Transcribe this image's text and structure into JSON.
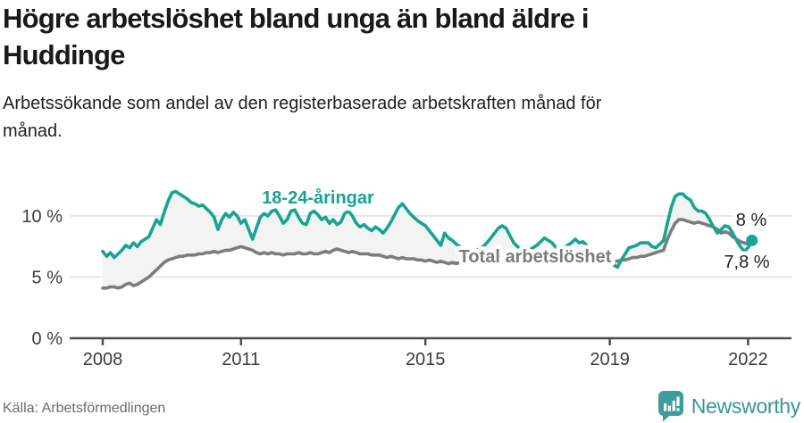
{
  "header": {
    "title_lines": [
      "Högre arbetslöshet bland unga än bland äldre i",
      "Huddinge"
    ],
    "subtitle_lines": [
      "Arbetssökande som andel av den registerbaserade arbetskraften månad för",
      "månad."
    ]
  },
  "chart_data": {
    "type": "line",
    "title": "Högre arbetslöshet bland unga än bland äldre i Huddinge",
    "subtitle": "Arbetssökande som andel av den registerbaserade arbetskraften månad för månad.",
    "x_unit": "month",
    "x_start_year": 2008,
    "x_ticks": [
      {
        "label": "2008",
        "year": 2008
      },
      {
        "label": "2011",
        "year": 2011
      },
      {
        "label": "2015",
        "year": 2015
      },
      {
        "label": "2019",
        "year": 2019
      },
      {
        "label": "2022",
        "year": 2022
      }
    ],
    "y_ticks": [
      {
        "label": "0 %",
        "value": 0
      },
      {
        "label": "5 %",
        "value": 5
      },
      {
        "label": "10 %",
        "value": 10
      }
    ],
    "ylim": [
      0,
      13.2
    ],
    "grid": "horizontal",
    "gridline_values": [
      5,
      10
    ],
    "fill_between_color": "#f3f3f3",
    "series": [
      {
        "name": "18-24-åringar",
        "color": "#18a392",
        "end_label": "8 %",
        "end_marker": true,
        "values": [
          7.1,
          6.7,
          7.0,
          6.6,
          6.9,
          7.2,
          7.6,
          7.4,
          7.8,
          7.5,
          7.9,
          8.1,
          8.3,
          9.0,
          9.7,
          9.3,
          10.3,
          11.2,
          11.9,
          12.0,
          11.8,
          11.6,
          11.4,
          11.1,
          11.0,
          10.8,
          10.9,
          10.6,
          10.3,
          9.9,
          8.9,
          9.7,
          10.2,
          9.9,
          10.3,
          10.0,
          9.4,
          9.7,
          8.9,
          8.1,
          9.0,
          9.9,
          10.2,
          10.0,
          10.4,
          10.5,
          10.0,
          9.4,
          9.7,
          10.4,
          10.5,
          9.9,
          9.4,
          9.3,
          10.2,
          10.4,
          10.1,
          9.7,
          9.9,
          9.4,
          9.7,
          9.3,
          9.5,
          10.2,
          10.4,
          10.0,
          9.4,
          9.1,
          9.3,
          9.0,
          8.8,
          9.1,
          8.9,
          8.6,
          9.0,
          9.5,
          10.1,
          10.7,
          11.0,
          10.6,
          10.2,
          9.9,
          9.6,
          9.4,
          9.2,
          8.8,
          8.4,
          8.0,
          7.6,
          8.6,
          8.2,
          8.0,
          7.7,
          7.5,
          7.3,
          7.4,
          7.2,
          7.1,
          7.3,
          7.5,
          7.8,
          8.2,
          8.6,
          9.0,
          9.2,
          9.0,
          8.4,
          7.8,
          7.5,
          7.2,
          7.1,
          7.2,
          7.4,
          7.6,
          7.9,
          8.2,
          8.0,
          7.8,
          7.4,
          7.2,
          7.3,
          7.6,
          7.8,
          8.1,
          7.8,
          7.9,
          7.6,
          7.3,
          7.0,
          6.8,
          6.5,
          6.2,
          6.3,
          6.0,
          5.8,
          6.4,
          6.9,
          7.4,
          7.5,
          7.6,
          7.8,
          7.8,
          7.8,
          7.5,
          7.4,
          7.7,
          8.0,
          9.4,
          10.7,
          11.6,
          11.8,
          11.8,
          11.5,
          11.3,
          10.7,
          10.4,
          10.4,
          10.2,
          9.7,
          9.1,
          8.6,
          8.9,
          9.2,
          9.1,
          8.6,
          8.0,
          7.5,
          7.1,
          7.4,
          8.0
        ]
      },
      {
        "name": "Total arbetslöshet",
        "color": "#7c7c7c",
        "end_label": "7,8 %",
        "end_marker": false,
        "values": [
          4.1,
          4.1,
          4.2,
          4.2,
          4.1,
          4.2,
          4.4,
          4.5,
          4.3,
          4.4,
          4.6,
          4.8,
          5.0,
          5.3,
          5.6,
          5.9,
          6.2,
          6.4,
          6.5,
          6.6,
          6.7,
          6.7,
          6.8,
          6.8,
          6.8,
          6.9,
          6.9,
          7.0,
          7.0,
          7.1,
          7.0,
          7.1,
          7.2,
          7.2,
          7.3,
          7.4,
          7.5,
          7.4,
          7.3,
          7.2,
          7.0,
          6.9,
          7.0,
          6.9,
          7.0,
          6.9,
          6.9,
          6.8,
          6.9,
          6.9,
          6.9,
          7.0,
          6.9,
          6.9,
          7.0,
          6.9,
          6.9,
          7.0,
          7.1,
          7.0,
          7.2,
          7.3,
          7.2,
          7.1,
          7.0,
          7.1,
          7.0,
          6.9,
          6.9,
          6.9,
          6.8,
          6.8,
          6.8,
          6.7,
          6.6,
          6.7,
          6.6,
          6.5,
          6.6,
          6.5,
          6.5,
          6.5,
          6.4,
          6.4,
          6.3,
          6.4,
          6.3,
          6.2,
          6.3,
          6.2,
          6.1,
          6.2,
          6.1,
          6.2,
          6.2,
          6.1,
          6.2,
          6.2,
          6.1,
          6.2,
          6.3,
          6.2,
          6.3,
          6.3,
          6.2,
          6.3,
          6.3,
          6.2,
          6.3,
          6.2,
          6.2,
          6.2,
          6.3,
          6.3,
          6.3,
          6.2,
          6.3,
          6.2,
          6.2,
          6.2,
          6.2,
          6.3,
          6.2,
          6.2,
          6.1,
          6.2,
          6.1,
          6.1,
          6.1,
          6.1,
          6.1,
          6.2,
          6.2,
          6.3,
          6.3,
          6.4,
          6.4,
          6.5,
          6.6,
          6.6,
          6.7,
          6.7,
          6.8,
          6.9,
          7.0,
          7.1,
          7.2,
          8.1,
          8.8,
          9.4,
          9.7,
          9.7,
          9.6,
          9.5,
          9.4,
          9.5,
          9.4,
          9.3,
          9.2,
          9.1,
          8.9,
          8.6,
          8.7,
          8.6,
          8.3,
          8.1,
          7.9,
          7.8,
          7.7,
          7.8
        ]
      }
    ],
    "legend_position": "inline-labels"
  },
  "footer": {
    "source": "Källa: Arbetsförmedlingen",
    "logo_text": "Newsworthy"
  },
  "colors": {
    "accent_teal": "#18a392",
    "series_gray": "#7c7c7c",
    "gridline": "#e1e1e1",
    "axis": "#4d4d4d",
    "tick_text": "#3c3c3c",
    "logo_badge": "#3d9c9c"
  }
}
